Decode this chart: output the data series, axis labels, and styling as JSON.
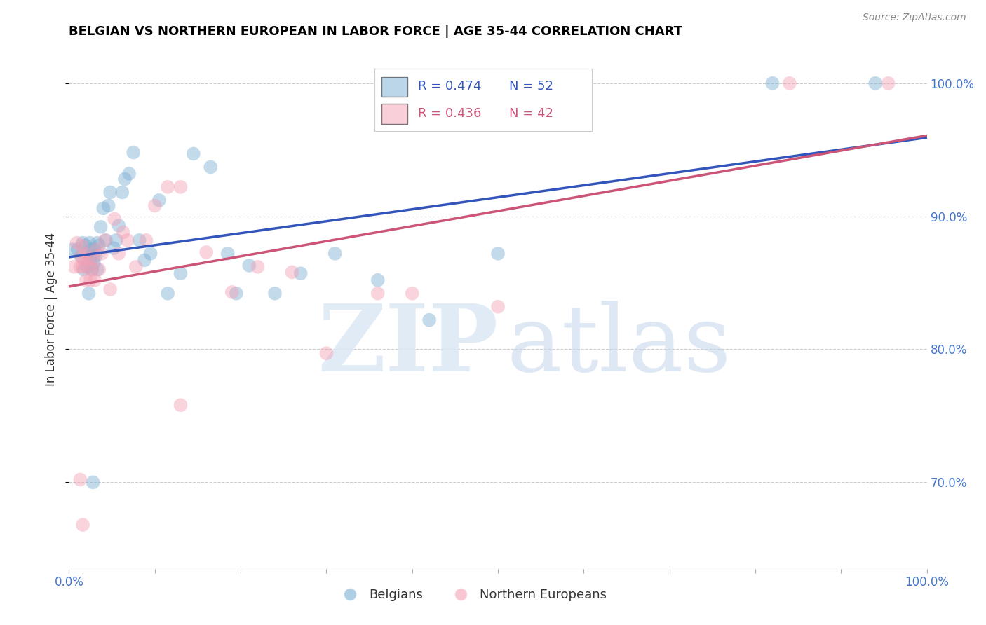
{
  "title": "BELGIAN VS NORTHERN EUROPEAN IN LABOR FORCE | AGE 35-44 CORRELATION CHART",
  "source": "Source: ZipAtlas.com",
  "ylabel": "In Labor Force | Age 35-44",
  "xlim": [
    0.0,
    1.0
  ],
  "ylim": [
    0.635,
    1.025
  ],
  "yticks": [
    0.7,
    0.8,
    0.9,
    1.0
  ],
  "yticklabels": [
    "70.0%",
    "80.0%",
    "90.0%",
    "100.0%"
  ],
  "blue_R": 0.474,
  "blue_N": 52,
  "pink_R": 0.436,
  "pink_N": 42,
  "blue_color": "#7BAFD4",
  "pink_color": "#F4A0B5",
  "blue_line_color": "#3355BB",
  "pink_line_color": "#CC5577",
  "legend_label_blue": "Belgians",
  "legend_label_pink": "Northern Europeans",
  "blue_points_x": [
    0.004,
    0.01,
    0.014,
    0.016,
    0.017,
    0.019,
    0.021,
    0.022,
    0.024,
    0.025,
    0.026,
    0.027,
    0.028,
    0.029,
    0.03,
    0.031,
    0.033,
    0.035,
    0.037,
    0.04,
    0.043,
    0.046,
    0.048,
    0.052,
    0.055,
    0.058,
    0.062,
    0.065,
    0.07,
    0.075,
    0.082,
    0.088,
    0.095,
    0.105,
    0.115,
    0.13,
    0.145,
    0.165,
    0.185,
    0.21,
    0.24,
    0.27,
    0.31,
    0.36,
    0.42,
    0.5,
    0.82,
    0.94,
    0.023,
    0.028,
    0.033,
    0.195
  ],
  "blue_points_y": [
    0.875,
    0.875,
    0.87,
    0.88,
    0.86,
    0.878,
    0.862,
    0.872,
    0.88,
    0.87,
    0.875,
    0.86,
    0.87,
    0.865,
    0.875,
    0.87,
    0.88,
    0.878,
    0.892,
    0.906,
    0.882,
    0.908,
    0.918,
    0.876,
    0.882,
    0.893,
    0.918,
    0.928,
    0.932,
    0.948,
    0.882,
    0.867,
    0.872,
    0.912,
    0.842,
    0.857,
    0.947,
    0.937,
    0.872,
    0.863,
    0.842,
    0.857,
    0.872,
    0.852,
    0.822,
    0.872,
    1.0,
    1.0,
    0.842,
    0.7,
    0.86,
    0.842
  ],
  "pink_points_x": [
    0.006,
    0.009,
    0.013,
    0.014,
    0.015,
    0.016,
    0.017,
    0.019,
    0.02,
    0.022,
    0.023,
    0.025,
    0.027,
    0.028,
    0.03,
    0.032,
    0.035,
    0.038,
    0.042,
    0.048,
    0.053,
    0.058,
    0.063,
    0.068,
    0.078,
    0.09,
    0.1,
    0.115,
    0.13,
    0.16,
    0.19,
    0.22,
    0.26,
    0.3,
    0.36,
    0.4,
    0.5,
    0.84,
    0.955,
    0.013,
    0.016,
    0.13
  ],
  "pink_points_y": [
    0.862,
    0.88,
    0.862,
    0.87,
    0.878,
    0.862,
    0.868,
    0.872,
    0.852,
    0.862,
    0.868,
    0.852,
    0.86,
    0.868,
    0.852,
    0.875,
    0.86,
    0.872,
    0.882,
    0.845,
    0.898,
    0.872,
    0.888,
    0.882,
    0.862,
    0.882,
    0.908,
    0.922,
    0.922,
    0.873,
    0.843,
    0.862,
    0.858,
    0.797,
    0.842,
    0.842,
    0.832,
    1.0,
    1.0,
    0.702,
    0.668,
    0.758
  ]
}
